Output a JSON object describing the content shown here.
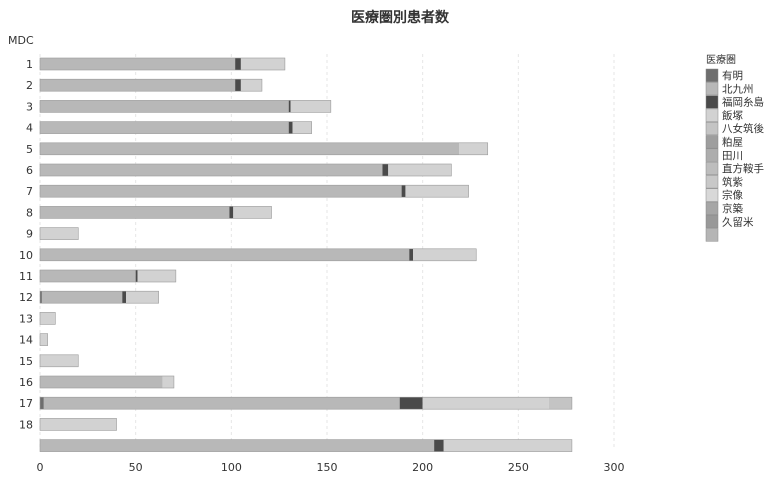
{
  "chart_data": {
    "type": "bar",
    "orientation": "horizontal",
    "stacked": true,
    "title": "医療圏別患者数",
    "ylabel": "MDC",
    "xlabel": "",
    "xlim": [
      0,
      300
    ],
    "xticks": [
      0,
      50,
      100,
      150,
      200,
      250,
      300
    ],
    "grid": true,
    "legend_position": "right",
    "legend_title": "医療圏",
    "categories": [
      "1",
      "2",
      "3",
      "4",
      "5",
      "6",
      "7",
      "8",
      "9",
      "10",
      "11",
      "12",
      "13",
      "14",
      "15",
      "16",
      "17",
      "18",
      ""
    ],
    "series": [
      {
        "name": "有明",
        "color": "#6e6e6e",
        "values": [
          0,
          0,
          0,
          0,
          0,
          0,
          0,
          0,
          0,
          0,
          0,
          1,
          0,
          0,
          0,
          0,
          2,
          0,
          0
        ]
      },
      {
        "name": "北九州",
        "color": "#b8b8b8",
        "values": [
          102,
          102,
          130,
          130,
          219,
          179,
          189,
          99,
          0,
          193,
          50,
          42,
          0,
          0,
          0,
          64,
          186,
          0,
          206
        ]
      },
      {
        "name": "福岡糸島",
        "color": "#4a4a4a",
        "values": [
          3,
          3,
          1,
          2,
          0,
          3,
          2,
          2,
          0,
          2,
          1,
          2,
          0,
          0,
          0,
          0,
          12,
          0,
          5
        ]
      },
      {
        "name": "飯塚",
        "color": "#d2d2d2",
        "values": [
          23,
          11,
          21,
          10,
          15,
          33,
          33,
          20,
          20,
          33,
          20,
          17,
          8,
          4,
          20,
          6,
          66,
          40,
          67
        ]
      },
      {
        "name": "八女筑後",
        "color": "#c4c4c4",
        "values": [
          0,
          0,
          0,
          0,
          0,
          0,
          0,
          0,
          0,
          0,
          0,
          0,
          0,
          0,
          0,
          0,
          12,
          0,
          0
        ]
      },
      {
        "name": "粕屋",
        "color": "#9e9e9e",
        "values": [
          0,
          0,
          0,
          0,
          0,
          0,
          0,
          0,
          0,
          0,
          0,
          0,
          0,
          0,
          0,
          0,
          0,
          0,
          0
        ]
      },
      {
        "name": "田川",
        "color": "#adadad",
        "values": [
          0,
          0,
          0,
          0,
          0,
          0,
          0,
          0,
          0,
          0,
          0,
          0,
          0,
          0,
          0,
          0,
          0,
          0,
          0
        ]
      },
      {
        "name": "直方鞍手",
        "color": "#bdbdbd",
        "values": [
          0,
          0,
          0,
          0,
          0,
          0,
          0,
          0,
          0,
          0,
          0,
          0,
          0,
          0,
          0,
          0,
          0,
          0,
          0
        ]
      },
      {
        "name": "筑紫",
        "color": "#c8c8c8",
        "values": [
          0,
          0,
          0,
          0,
          0,
          0,
          0,
          0,
          0,
          0,
          0,
          0,
          0,
          0,
          0,
          0,
          0,
          0,
          0
        ]
      },
      {
        "name": "宗像",
        "color": "#d8d8d8",
        "values": [
          0,
          0,
          0,
          0,
          0,
          0,
          0,
          0,
          0,
          0,
          0,
          0,
          0,
          0,
          0,
          0,
          0,
          0,
          0
        ]
      },
      {
        "name": "京築",
        "color": "#a6a6a6",
        "values": [
          0,
          0,
          0,
          0,
          0,
          0,
          0,
          0,
          0,
          0,
          0,
          0,
          0,
          0,
          0,
          0,
          0,
          0,
          0
        ]
      },
      {
        "name": "久留米",
        "color": "#999999",
        "values": [
          0,
          0,
          0,
          0,
          0,
          0,
          0,
          0,
          0,
          0,
          0,
          0,
          0,
          0,
          0,
          0,
          0,
          0,
          0
        ]
      }
    ],
    "legend_extra_swatch_color": "#b5b5b5"
  }
}
